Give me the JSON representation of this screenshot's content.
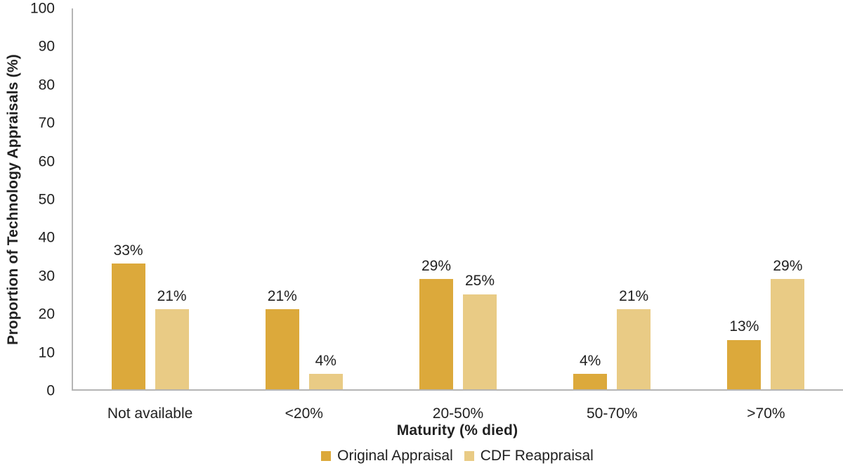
{
  "chart_data": {
    "type": "bar",
    "title": "",
    "xlabel": "Maturity (% died)",
    "ylabel": "Proportion of Technology Appraisals (%)",
    "categories": [
      "Not available",
      "<20%",
      "20-50%",
      "50-70%",
      ">70%"
    ],
    "series": [
      {
        "name": "Original Appraisal",
        "color": "#DCA93B",
        "values": [
          33,
          21,
          29,
          4,
          13
        ],
        "labels": [
          "33%",
          "21%",
          "29%",
          "4%",
          "13%"
        ]
      },
      {
        "name": "CDF Reappraisal",
        "color": "#E9CB85",
        "values": [
          21,
          4,
          25,
          21,
          29
        ],
        "labels": [
          "21%",
          "4%",
          "25%",
          "21%",
          "29%"
        ]
      }
    ],
    "ylim": [
      0,
      100
    ],
    "yticks": [
      0,
      10,
      20,
      30,
      40,
      50,
      60,
      70,
      80,
      90,
      100
    ],
    "grid": false,
    "legend_position": "bottom",
    "axis_color": "#B5B5B5"
  }
}
